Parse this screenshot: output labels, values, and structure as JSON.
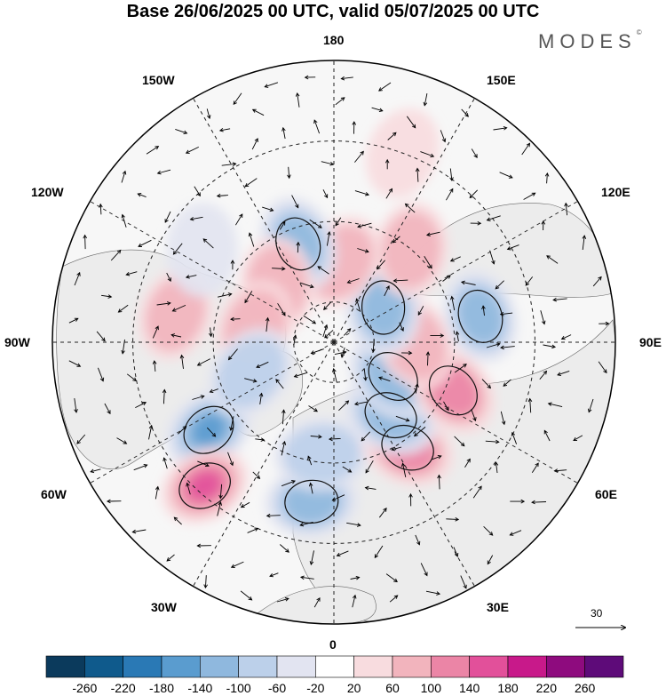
{
  "title": "Base 26/06/2025 00 UTC, valid 05/07/2025 00 UTC",
  "brand": {
    "name": "MODES",
    "mark": "©"
  },
  "longitude_labels": {
    "n180": "180",
    "w150": "150W",
    "e150": "150E",
    "w120": "120W",
    "e120": "120E",
    "w90": "90W",
    "e90": "90E",
    "w60": "60W",
    "e60": "60E",
    "w30": "30W",
    "e30": "30E",
    "s0": "0"
  },
  "reference_vector": {
    "label": "30"
  },
  "colorbar": {
    "colors": [
      "#0b3a5c",
      "#0f5a8c",
      "#2a79b5",
      "#5a9ccf",
      "#8fb8de",
      "#bcd0ea",
      "#e2e4f1",
      "#ffffff",
      "#f8dcdf",
      "#f2b4bd",
      "#eb85a6",
      "#e2509a",
      "#c8198a",
      "#8e0b7e",
      "#5e0b79"
    ],
    "tick_labels": [
      "-260",
      "-220",
      "-180",
      "-140",
      "-100",
      "-60",
      "-20",
      "20",
      "60",
      "100",
      "140",
      "180",
      "220",
      "260"
    ]
  },
  "anomaly_features": [
    {
      "kind": "neg",
      "lon": -55,
      "lat": 52,
      "strength": 4
    },
    {
      "kind": "pos",
      "lon": -42,
      "lat": 42,
      "strength": 4
    },
    {
      "kind": "neg",
      "lon": -8,
      "lat": 50,
      "strength": 3
    },
    {
      "kind": "neg",
      "lon": -6,
      "lat": 62,
      "strength": 2
    },
    {
      "kind": "pos",
      "lon": 35,
      "lat": 58,
      "strength": 3
    },
    {
      "kind": "neg",
      "lon": 38,
      "lat": 67,
      "strength": 3
    },
    {
      "kind": "neg",
      "lon": 60,
      "lat": 73,
      "strength": 3
    },
    {
      "kind": "pos",
      "lon": 68,
      "lat": 58,
      "strength": 3
    },
    {
      "kind": "pos",
      "lon": 90,
      "lat": 70,
      "strength": 2
    },
    {
      "kind": "neg",
      "lon": 100,
      "lat": 53,
      "strength": 3
    },
    {
      "kind": "neg",
      "lon": 125,
      "lat": 75,
      "strength": 3
    },
    {
      "kind": "pos",
      "lon": 140,
      "lat": 60,
      "strength": 2
    },
    {
      "kind": "pos",
      "lon": 175,
      "lat": 70,
      "strength": 2
    },
    {
      "kind": "neg",
      "lon": -160,
      "lat": 64,
      "strength": 3
    },
    {
      "kind": "pos",
      "lon": -135,
      "lat": 70,
      "strength": 2
    },
    {
      "kind": "pos",
      "lon": -100,
      "lat": 70,
      "strength": 2
    },
    {
      "kind": "pos",
      "lon": -100,
      "lat": 50,
      "strength": 2
    },
    {
      "kind": "neg",
      "lon": -70,
      "lat": 68,
      "strength": 2
    },
    {
      "kind": "neg",
      "lon": -125,
      "lat": 50,
      "strength": 1
    },
    {
      "kind": "pos",
      "lon": 160,
      "lat": 40,
      "strength": 1
    }
  ]
}
